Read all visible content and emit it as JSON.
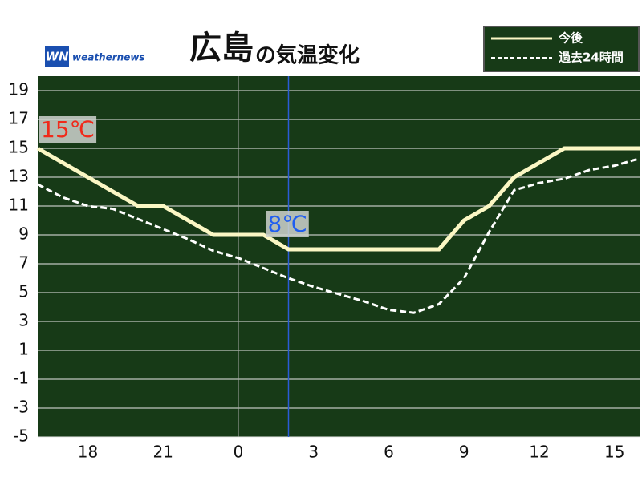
{
  "chart_data": {
    "type": "line",
    "title": "広島",
    "subtitle": "の気温変化",
    "brand": "weathernews",
    "x": [
      16,
      17,
      18,
      19,
      20,
      21,
      22,
      23,
      24,
      25,
      26,
      27,
      28,
      29,
      30,
      31,
      32,
      33,
      34,
      35,
      36,
      37,
      38,
      39,
      40
    ],
    "series": [
      {
        "name": "今後",
        "color": "#fbf7c4",
        "style": "solid",
        "values": [
          15,
          14,
          13,
          12,
          11,
          11,
          10,
          9,
          9,
          9,
          8,
          8,
          8,
          8,
          8,
          8,
          8,
          10,
          11,
          13,
          14,
          15,
          15,
          15,
          15
        ]
      },
      {
        "name": "過去24時間",
        "color": "#ffffff",
        "style": "dashed",
        "values": [
          12.5,
          11.6,
          11,
          10.8,
          10.1,
          9.4,
          8.7,
          7.9,
          7.4,
          6.7,
          6.0,
          5.4,
          4.9,
          4.4,
          3.8,
          3.6,
          4.2,
          6.0,
          9.2,
          12.1,
          12.6,
          12.9,
          13.5,
          13.8,
          14.3
        ]
      }
    ],
    "xlim": [
      16,
      40
    ],
    "xticks": [
      18,
      21,
      {
        "value": 24,
        "label": "0"
      },
      {
        "value": 27,
        "label": "3"
      },
      {
        "value": 30,
        "label": "6"
      },
      {
        "value": 33,
        "label": "9"
      },
      {
        "value": 36,
        "label": "12"
      },
      {
        "value": 39,
        "label": "15"
      }
    ],
    "ylim": [
      -5,
      20
    ],
    "yticks": [
      -5,
      -3,
      -1,
      1,
      3,
      5,
      7,
      9,
      11,
      13,
      15,
      17,
      19
    ],
    "day_boundary": 24,
    "now": 26,
    "annotations": [
      {
        "text": "15℃",
        "x": 16,
        "value": 15,
        "color": "#f02a1a"
      },
      {
        "text": "8℃",
        "x": 26,
        "value": 8,
        "color": "#1f5ef0"
      }
    ],
    "grid": true,
    "legend": "top-right"
  }
}
